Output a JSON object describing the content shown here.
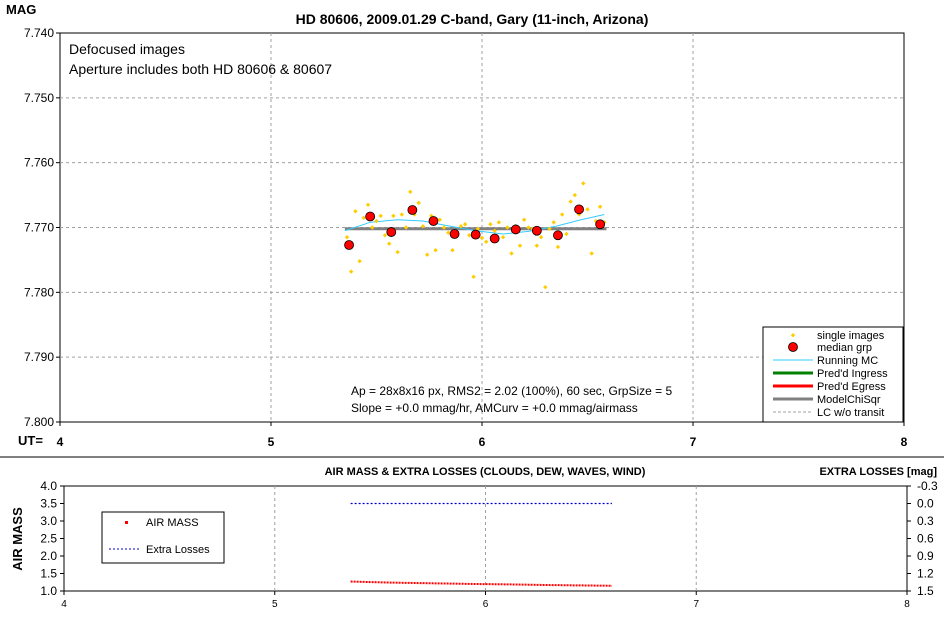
{
  "chart_data": [
    {
      "type": "scatter",
      "title": "HD 80606, 2009.01.29 C-band, Gary (11-inch, Arizona)",
      "ylabel": "MAG",
      "xlabel": "UT=",
      "xlim": [
        4,
        8
      ],
      "ylim": [
        7.74,
        7.8
      ],
      "y_inverted": true,
      "x_ticks": [
        "4",
        "5",
        "6",
        "7",
        "8"
      ],
      "y_ticks": [
        "7.740",
        "7.750",
        "7.760",
        "7.770",
        "7.780",
        "7.790",
        "7.800"
      ],
      "grid": true,
      "legend_position": "bottom-right",
      "annotations": [
        "Defocused images",
        "Aperture includes both HD 80606 & 80607",
        "Ap = 28x8x16 px, RMS2 = 2.02 (100%), 60 sec, GrpSize = 5",
        "Slope = +0.0 mmag/hr, AMCurv = +0.0 mmag/airmass"
      ],
      "legend": [
        "single images",
        "median grp",
        "Running MC",
        "Pred'd Ingress",
        "Pred'd Egress",
        "ModelChiSqr",
        "LC w/o transit"
      ],
      "colors": {
        "single": "#ffcc00",
        "median": "#ff0000",
        "running": "#33ccff",
        "ingress": "#008000",
        "egress": "#ff0000",
        "model": "#808080",
        "lc": "#a0a0a0"
      },
      "series": [
        {
          "name": "single images",
          "x": [
            5.36,
            5.38,
            5.4,
            5.42,
            5.44,
            5.46,
            5.48,
            5.5,
            5.52,
            5.54,
            5.56,
            5.58,
            5.6,
            5.62,
            5.64,
            5.66,
            5.68,
            5.7,
            5.72,
            5.74,
            5.76,
            5.78,
            5.8,
            5.82,
            5.84,
            5.86,
            5.88,
            5.9,
            5.92,
            5.94,
            5.96,
            5.98,
            6.0,
            6.02,
            6.04,
            6.06,
            6.08,
            6.1,
            6.12,
            6.14,
            6.16,
            6.18,
            6.2,
            6.22,
            6.24,
            6.26,
            6.28,
            6.3,
            6.32,
            6.34,
            6.36,
            6.38,
            6.4,
            6.42,
            6.44,
            6.46,
            6.48,
            6.5,
            6.52,
            6.54,
            6.56,
            6.58
          ],
          "y": [
            7.7715,
            7.7768,
            7.7675,
            7.7752,
            7.7685,
            7.7665,
            7.77,
            7.769,
            7.7682,
            7.7712,
            7.7725,
            7.7682,
            7.7738,
            7.768,
            7.77,
            7.7645,
            7.768,
            7.7662,
            7.7698,
            7.7742,
            7.7682,
            7.7735,
            7.7688,
            7.77,
            7.7708,
            7.7735,
            7.7712,
            7.7698,
            7.7695,
            7.7712,
            7.7776,
            7.7702,
            7.7716,
            7.7722,
            7.7695,
            7.7705,
            7.7692,
            7.7715,
            7.77,
            7.774,
            7.7698,
            7.7728,
            7.7688,
            7.77,
            7.7702,
            7.7728,
            7.7715,
            7.7792,
            7.7702,
            7.7692,
            7.773,
            7.768,
            7.771,
            7.766,
            7.765,
            7.768,
            7.7632,
            7.7672,
            7.774,
            7.769,
            7.7668,
            7.7692
          ]
        },
        {
          "name": "median grp",
          "x": [
            5.37,
            5.47,
            5.57,
            5.67,
            5.77,
            5.87,
            5.97,
            6.06,
            6.16,
            6.26,
            6.36,
            6.46,
            6.56
          ],
          "y": [
            7.7727,
            7.7683,
            7.7707,
            7.7673,
            7.769,
            7.771,
            7.7711,
            7.7717,
            7.7703,
            7.7705,
            7.7712,
            7.7672,
            7.7695
          ]
        },
        {
          "name": "Running MC",
          "x": [
            5.35,
            5.47,
            5.6,
            5.72,
            5.85,
            5.97,
            6.1,
            6.22,
            6.35,
            6.47,
            6.58
          ],
          "y": [
            7.7705,
            7.7692,
            7.7688,
            7.769,
            7.7698,
            7.7705,
            7.771,
            7.7706,
            7.7698,
            7.7688,
            7.768
          ]
        },
        {
          "name": "ModelChiSqr",
          "x": [
            5.35,
            6.59
          ],
          "y": [
            7.7702,
            7.7702
          ]
        }
      ]
    },
    {
      "type": "line",
      "title": "AIR MASS & EXTRA LOSSES (CLOUDS, DEW, WAVES, WIND)",
      "ylabel": "AIR MASS",
      "y2label": "EXTRA LOSSES [mag]",
      "xlim": [
        4,
        8
      ],
      "ylim": [
        1.0,
        4.0
      ],
      "y2lim": [
        1.5,
        -0.3
      ],
      "x_ticks": [
        "4",
        "5",
        "6",
        "7",
        "8"
      ],
      "y_ticks": [
        "1.0",
        "1.5",
        "2.0",
        "2.5",
        "3.0",
        "3.5",
        "4.0"
      ],
      "y2_ticks": [
        "1.5",
        "1.2",
        "0.9",
        "0.6",
        "0.3",
        "0.0",
        "-0.3"
      ],
      "grid": true,
      "legend_position": "top-left",
      "legend": [
        "AIR MASS",
        "Extra Losses"
      ],
      "colors": {
        "airmass": "#ff0000",
        "losses": "#0000cc"
      },
      "series": [
        {
          "name": "AIR MASS",
          "x": [
            5.36,
            5.55,
            5.75,
            5.95,
            6.1,
            6.3,
            6.45,
            6.6
          ],
          "y": [
            1.27,
            1.24,
            1.22,
            1.2,
            1.19,
            1.17,
            1.16,
            1.15
          ]
        },
        {
          "name": "Extra Losses",
          "axis": "y2",
          "x": [
            5.36,
            5.6,
            5.85,
            6.1,
            6.35,
            6.6
          ],
          "y": [
            0.0,
            0.0,
            0.0,
            0.0,
            0.0,
            0.0
          ]
        }
      ]
    }
  ]
}
